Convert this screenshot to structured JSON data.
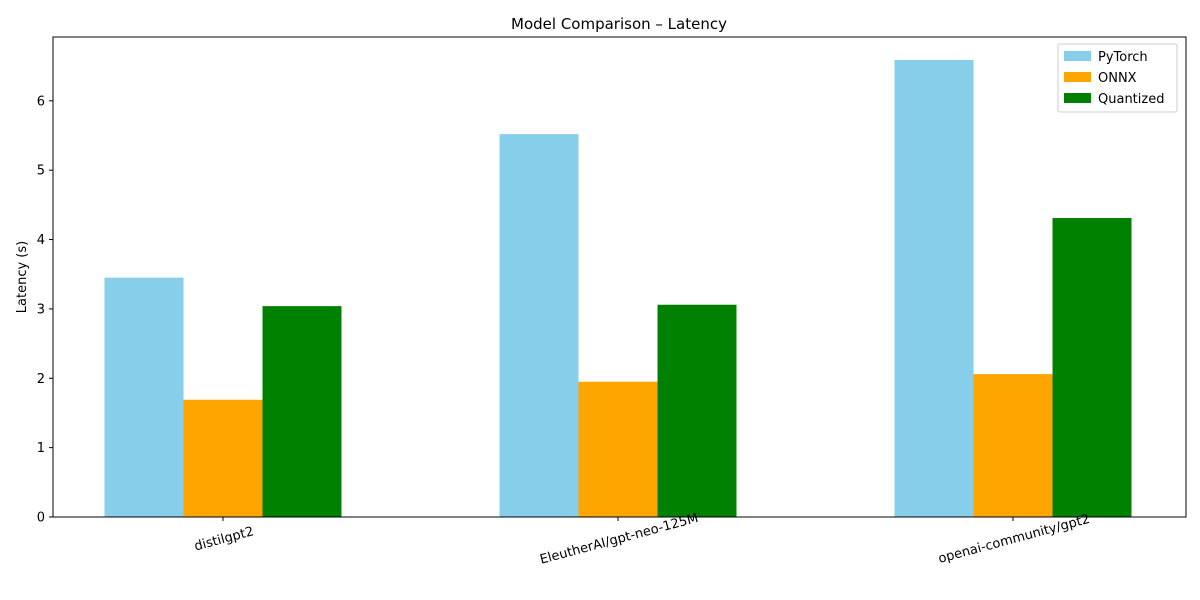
{
  "chart_data": {
    "type": "bar",
    "title": "Model Comparison – Latency",
    "xlabel": "",
    "ylabel": "Latency (s)",
    "ylim": [
      0,
      6.92
    ],
    "yticks": [
      "0",
      "1",
      "2",
      "3",
      "4",
      "5",
      "6"
    ],
    "categories": [
      "distilgpt2",
      "EleutherAI/gpt-neo-125M",
      "openai-community/gpt2"
    ],
    "series": [
      {
        "name": "PyTorch",
        "color": "#87ceeb",
        "values": [
          3.45,
          5.52,
          6.59
        ]
      },
      {
        "name": "ONNX",
        "color": "#ffa500",
        "values": [
          1.69,
          1.95,
          2.06
        ]
      },
      {
        "name": "Quantized",
        "color": "#008000",
        "values": [
          3.04,
          3.06,
          4.31
        ]
      }
    ],
    "legend_position": "top-right",
    "grid": false
  }
}
